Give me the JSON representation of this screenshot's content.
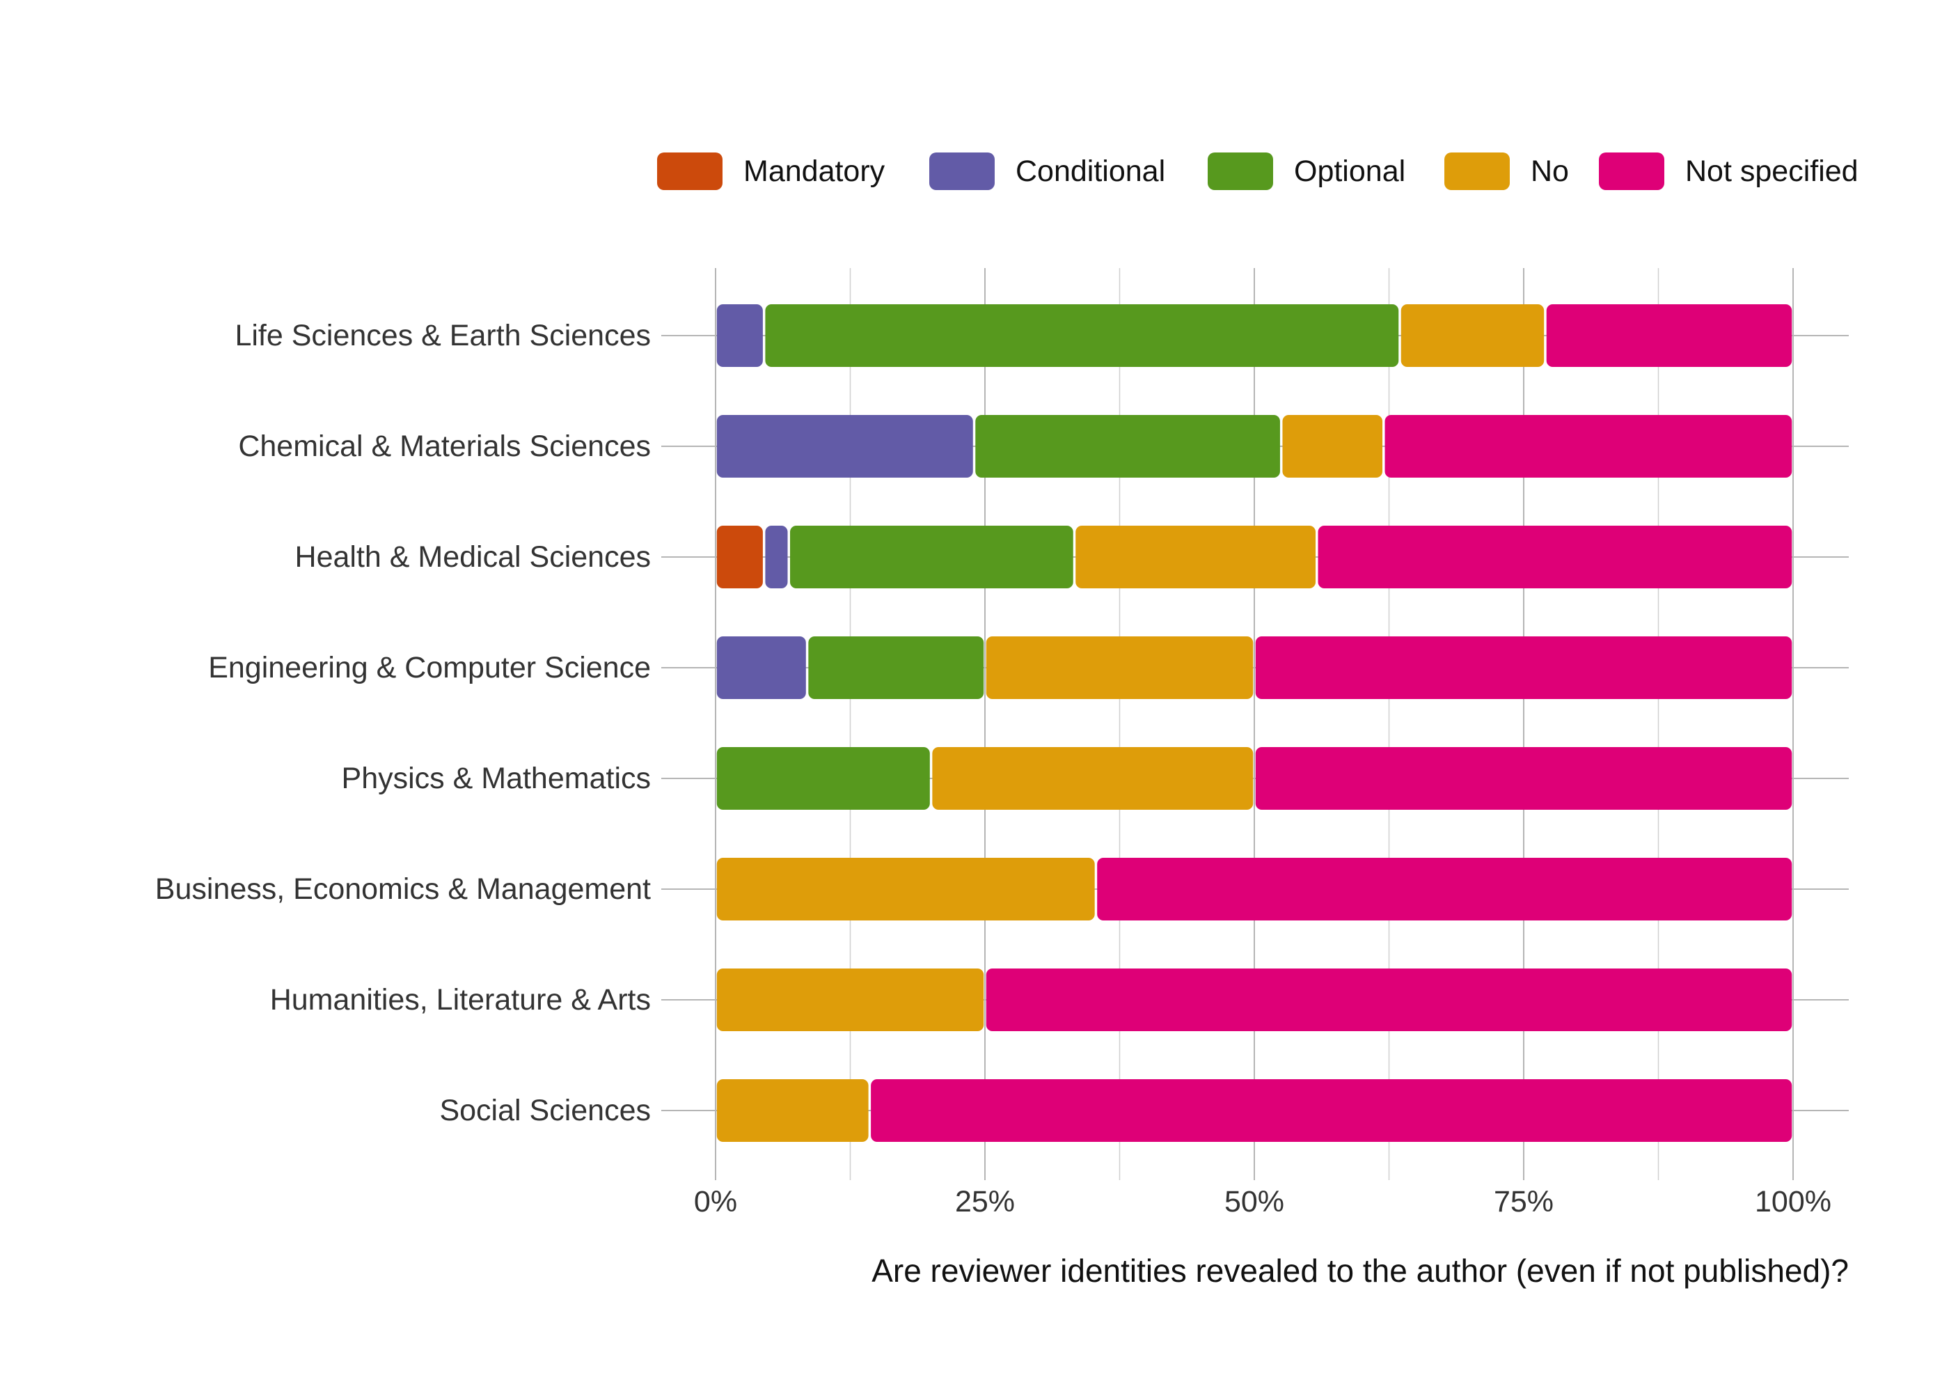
{
  "chart_data": {
    "type": "bar",
    "orientation": "horizontal",
    "stacked": true,
    "xlabel": "Are reviewer identities revealed to the author (even if not published)?",
    "ylabel": "",
    "xlim": [
      0,
      100
    ],
    "x_ticks": [
      0,
      25,
      50,
      75,
      100
    ],
    "x_tick_labels": [
      "0%",
      "25%",
      "50%",
      "75%",
      "100%"
    ],
    "grid": true,
    "legend_position": "top-right",
    "categories": [
      "Life Sciences & Earth Sciences",
      "Chemical & Materials Sciences",
      "Health & Medical Sciences",
      "Engineering & Computer Science",
      "Physics & Mathematics",
      "Business, Economics & Management",
      "Humanities, Literature & Arts",
      "Social Sciences"
    ],
    "series": [
      {
        "name": "Mandatory",
        "color": "#CC4A0C",
        "values": [
          0,
          0,
          4.5,
          0,
          0,
          0,
          0,
          0
        ]
      },
      {
        "name": "Conditional",
        "color": "#625BA7",
        "values": [
          4.5,
          24,
          2.3,
          8.5,
          0,
          0,
          0,
          0
        ]
      },
      {
        "name": "Optional",
        "color": "#57991E",
        "values": [
          59,
          28.5,
          26.5,
          16.5,
          20,
          0,
          0,
          0
        ]
      },
      {
        "name": "No",
        "color": "#DE9D0A",
        "values": [
          13.5,
          9.5,
          22.5,
          25,
          30,
          35.3,
          25,
          14.3
        ]
      },
      {
        "name": "Not specified",
        "color": "#DE0077",
        "values": [
          23,
          38,
          44.2,
          50,
          50,
          64.7,
          75,
          85.7
        ]
      }
    ]
  }
}
